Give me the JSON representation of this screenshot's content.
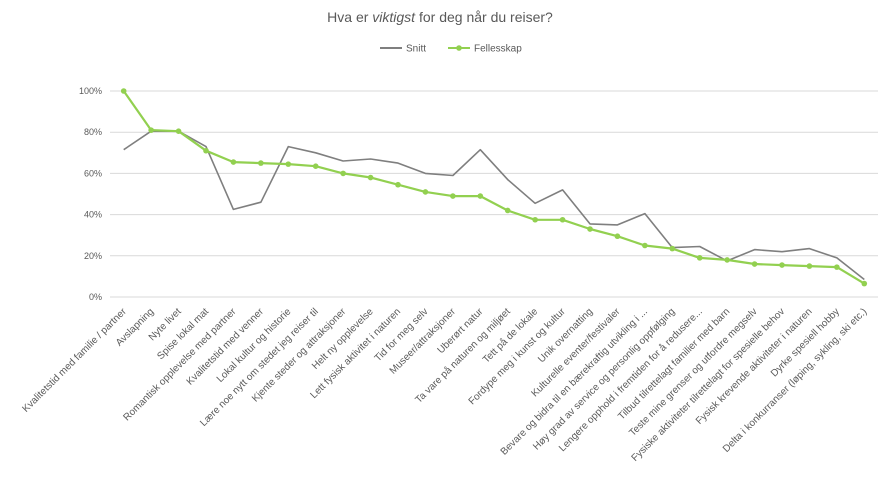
{
  "chart_data": {
    "type": "line",
    "title_parts": [
      {
        "text": "Hva er ",
        "italic": false
      },
      {
        "text": "viktigst",
        "italic": true
      },
      {
        "text": " for deg når du reiser?",
        "italic": false
      }
    ],
    "legend_position": "top",
    "ylim": [
      0,
      100
    ],
    "yticks": [
      0,
      20,
      40,
      60,
      80,
      100
    ],
    "ytick_labels": [
      "0%",
      "20%",
      "40%",
      "60%",
      "80%",
      "100%"
    ],
    "grid": true,
    "categories": [
      "Kvalitetstid med familie / partner",
      "Avslapning",
      "Nyte livet",
      "Spise lokal mat",
      "Romantisk opplevelse med partner",
      "Kvalitetstid med venner",
      "Lokal kultur og historie",
      "Lære noe nytt om stedet jeg reiser til",
      "Kjente steder og attraksjoner",
      "Helt ny opplevelse",
      "Lett fysisk aktivitet i naturen",
      "Tid for meg selv",
      "Museer/attraksjoner",
      "Uberørt natur",
      "Ta vare på naturen og miljøet",
      "Tett på de lokale",
      "Fordype meg i kunst og kultur",
      "Unik overnatting",
      "Kulturelle eventer/festivaler",
      "Bevare og bidra til en bærekraftig utvikling i ...",
      "Høy grad av service og personlig oppfølging",
      "Lengere opphold i fremtiden for å redusere...",
      "Tilbud tilrettelagt familier med barn",
      "Teste mine grenser og utfordre megselv",
      "Fysiske aktiviteter tilrettelagt for spesielle behov",
      "Fysisk krevende aktiviteter i naturen",
      "Dyrke spesiell hobby",
      "Delta i konkurranser (løping, sykling, ski etc.)"
    ],
    "series": [
      {
        "name": "Snitt",
        "color": "#7f7f7f",
        "marker": false,
        "values": [
          71.5,
          80.5,
          80.5,
          73,
          42.5,
          46,
          73,
          70,
          66,
          67,
          65,
          60,
          59,
          71.5,
          57,
          45.5,
          52,
          35.5,
          35,
          40.5,
          24,
          24.5,
          17.5,
          23,
          22,
          23.5,
          19,
          8.5
        ]
      },
      {
        "name": "Fellesskap",
        "color": "#92d050",
        "marker": true,
        "values": [
          100,
          81,
          80.5,
          71,
          65.5,
          65,
          64.5,
          63.5,
          60,
          58,
          54.5,
          51,
          49,
          49,
          42,
          37.5,
          37.5,
          33,
          29.5,
          25,
          23.5,
          19,
          18,
          16,
          15.5,
          15,
          14.5,
          6.5
        ]
      }
    ]
  }
}
